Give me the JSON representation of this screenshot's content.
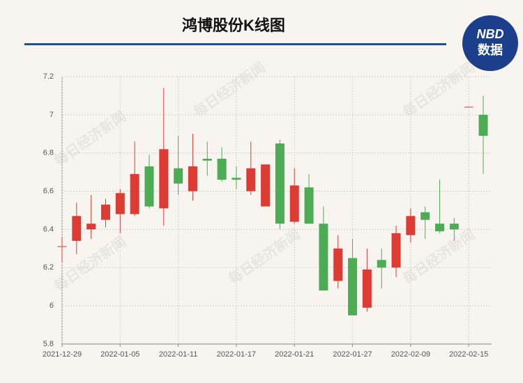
{
  "chart_data": {
    "type": "candlestick",
    "title": "鸿博股份K线图",
    "watermark": "每日经济新闻",
    "logo": {
      "top": "NBD",
      "bottom": "数据"
    },
    "categories": [
      "2021-12-29",
      null,
      null,
      null,
      "2022-01-05",
      null,
      null,
      null,
      "2022-01-11",
      null,
      null,
      null,
      "2022-01-17",
      null,
      null,
      null,
      "2022-01-21",
      null,
      null,
      null,
      "2022-01-27",
      null,
      null,
      null,
      "2022-02-09",
      null,
      null,
      null,
      "2022-02-15",
      null
    ],
    "open": [
      6.31,
      6.34,
      6.4,
      6.45,
      6.48,
      6.48,
      6.73,
      6.51,
      6.72,
      6.6,
      6.77,
      6.77,
      6.67,
      6.6,
      6.52,
      6.85,
      6.44,
      6.62,
      6.43,
      6.13,
      6.25,
      5.99,
      6.24,
      6.2,
      6.37,
      6.49,
      6.43,
      6.43,
      7.04,
      7.0
    ],
    "high": [
      6.36,
      6.54,
      6.58,
      6.56,
      6.61,
      6.86,
      6.79,
      7.14,
      6.89,
      6.9,
      6.86,
      6.83,
      6.73,
      6.86,
      6.74,
      6.87,
      6.72,
      6.69,
      6.52,
      6.37,
      6.35,
      6.3,
      6.3,
      6.42,
      6.51,
      6.52,
      6.66,
      6.46,
      7.04,
      7.1
    ],
    "low": [
      6.23,
      6.27,
      6.35,
      6.41,
      6.38,
      6.47,
      6.51,
      6.42,
      6.58,
      6.55,
      6.68,
      6.65,
      6.61,
      6.58,
      6.52,
      6.4,
      6.43,
      6.43,
      6.08,
      6.09,
      5.95,
      5.97,
      6.09,
      6.15,
      6.33,
      6.35,
      6.38,
      6.34,
      7.04,
      6.69
    ],
    "close": [
      6.31,
      6.47,
      6.43,
      6.53,
      6.59,
      6.69,
      6.52,
      6.82,
      6.64,
      6.73,
      6.76,
      6.66,
      6.66,
      6.72,
      6.74,
      6.43,
      6.63,
      6.43,
      6.08,
      6.3,
      5.95,
      6.19,
      6.2,
      6.38,
      6.47,
      6.45,
      6.39,
      6.4,
      7.04,
      6.89
    ],
    "up_color": "#dc3c34",
    "down_color": "#4cac54",
    "ylim": [
      5.8,
      7.2
    ],
    "yticks": [
      5.8,
      6,
      6.2,
      6.4,
      6.6,
      6.8,
      7,
      7.2
    ],
    "grid": true
  }
}
